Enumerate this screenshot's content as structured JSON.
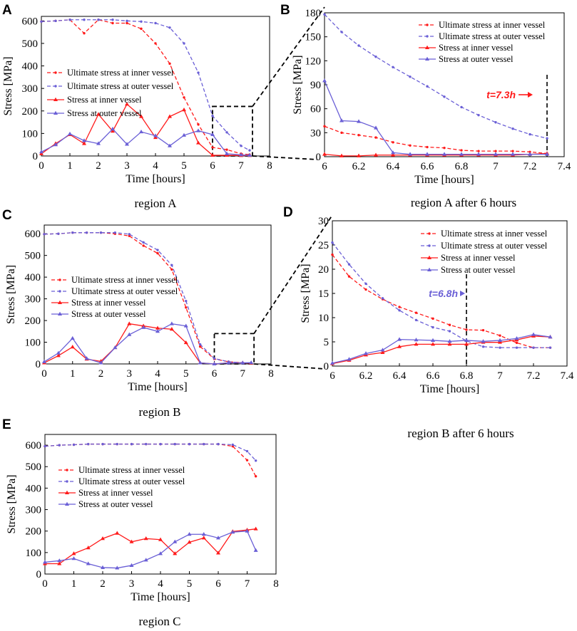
{
  "chart_data": [
    {
      "id": "A",
      "type": "line",
      "panel_label": "A",
      "caption": "region A",
      "xlabel": "Time [hours]",
      "ylabel": "Stress [MPa]",
      "xlim": [
        0,
        8
      ],
      "ylim": [
        0,
        620
      ],
      "xticks": [
        0,
        1,
        2,
        3,
        4,
        5,
        6,
        7,
        8
      ],
      "yticks": [
        0,
        100,
        200,
        300,
        400,
        500,
        600
      ],
      "legend_position": "middle-left",
      "series": [
        {
          "name": "Ultimate stress at inner vessel",
          "color": "#ff1a1a",
          "dashed": true,
          "marker": "dot",
          "x": [
            0,
            0.5,
            1,
            1.5,
            2,
            2.5,
            3,
            3.5,
            4,
            4.5,
            5,
            5.5,
            6,
            6.5,
            7,
            7.3
          ],
          "y": [
            597,
            600,
            605,
            545,
            605,
            590,
            590,
            565,
            500,
            410,
            260,
            140,
            38,
            28,
            10,
            6
          ]
        },
        {
          "name": "Ultimate stress at outer vessel",
          "color": "#6a5fd6",
          "dashed": true,
          "marker": "dot",
          "x": [
            0,
            0.5,
            1,
            1.5,
            2,
            2.5,
            3,
            3.5,
            4,
            4.5,
            5,
            5.5,
            6,
            6.5,
            7,
            7.3
          ],
          "y": [
            597,
            600,
            605,
            605,
            605,
            605,
            600,
            597,
            590,
            570,
            500,
            370,
            178,
            105,
            45,
            25
          ]
        },
        {
          "name": "Stress at inner vessel",
          "color": "#ff1a1a",
          "dashed": false,
          "marker": "triangle",
          "x": [
            0,
            0.5,
            1,
            1.5,
            2,
            2.5,
            3,
            3.5,
            4,
            4.5,
            5,
            5.5,
            6,
            6.5,
            7,
            7.3
          ],
          "y": [
            10,
            55,
            95,
            55,
            185,
            110,
            230,
            175,
            82,
            175,
            205,
            58,
            3,
            3,
            2,
            2
          ]
        },
        {
          "name": "Stress at outer vessel",
          "color": "#6a5fd6",
          "dashed": false,
          "marker": "triangle",
          "x": [
            0,
            0.5,
            1,
            1.5,
            2,
            2.5,
            3,
            3.5,
            4,
            4.5,
            5,
            5.5,
            6,
            6.5,
            7,
            7.3
          ],
          "y": [
            18,
            50,
            98,
            68,
            55,
            120,
            52,
            107,
            90,
            45,
            92,
            112,
            95,
            10,
            5,
            3
          ]
        }
      ]
    },
    {
      "id": "B",
      "type": "line",
      "panel_label": "B",
      "caption": "region A after 6 hours",
      "xlabel": "Time [hours]",
      "ylabel": "Stress [MPa]",
      "xlim": [
        6,
        7.4
      ],
      "ylim": [
        0,
        180
      ],
      "xticks": [
        6,
        6.2,
        6.4,
        6.6,
        6.8,
        7,
        7.2,
        7.4
      ],
      "yticks": [
        0,
        30,
        60,
        90,
        120,
        150,
        180
      ],
      "legend_position": "top-right",
      "annotation": {
        "text": "t=7.3h",
        "x": 7.3,
        "color": "#ff1a1a"
      },
      "series": [
        {
          "name": "Ultimate stress at inner vessel",
          "color": "#ff1a1a",
          "dashed": true,
          "marker": "dot",
          "x": [
            6,
            6.1,
            6.2,
            6.3,
            6.4,
            6.5,
            6.6,
            6.7,
            6.8,
            6.9,
            7,
            7.1,
            7.2,
            7.3
          ],
          "y": [
            38,
            30,
            27,
            24,
            18,
            14,
            12,
            11,
            8,
            7,
            7,
            7,
            6,
            4
          ]
        },
        {
          "name": "Ultimate stress at outer vessel",
          "color": "#6a5fd6",
          "dashed": true,
          "marker": "dot",
          "x": [
            6,
            6.1,
            6.2,
            6.3,
            6.4,
            6.5,
            6.6,
            6.7,
            6.8,
            6.9,
            7,
            7.1,
            7.2,
            7.3
          ],
          "y": [
            178,
            156,
            139,
            125,
            112,
            100,
            88,
            75,
            62,
            52,
            43,
            35,
            28,
            23
          ]
        },
        {
          "name": "Stress at inner vessel",
          "color": "#ff1a1a",
          "dashed": false,
          "marker": "triangle",
          "x": [
            6,
            6.1,
            6.2,
            6.3,
            6.4,
            6.5,
            6.6,
            6.7,
            6.8,
            6.9,
            7,
            7.1,
            7.2,
            7.3
          ],
          "y": [
            3,
            1,
            1,
            2,
            2,
            2,
            2,
            2,
            2,
            2,
            2,
            2,
            3,
            4
          ]
        },
        {
          "name": "Stress at outer vessel",
          "color": "#6a5fd6",
          "dashed": false,
          "marker": "triangle",
          "x": [
            6,
            6.1,
            6.2,
            6.3,
            6.4,
            6.5,
            6.6,
            6.7,
            6.8,
            6.9,
            7,
            7.1,
            7.2,
            7.3
          ],
          "y": [
            95,
            45,
            44,
            36,
            5,
            3,
            3,
            3,
            3,
            3,
            3,
            3,
            3,
            3
          ]
        }
      ]
    },
    {
      "id": "C",
      "type": "line",
      "panel_label": "C",
      "caption": "region B",
      "xlabel": "Time [hours]",
      "ylabel": "Stress [MPa]",
      "xlim": [
        0,
        8
      ],
      "ylim": [
        0,
        640
      ],
      "xticks": [
        0,
        1,
        2,
        3,
        4,
        5,
        6,
        7,
        8
      ],
      "yticks": [
        0,
        100,
        200,
        300,
        400,
        500,
        600
      ],
      "legend_position": "middle-left",
      "series": [
        {
          "name": "Ultimate stress at inner vessel",
          "color": "#ff1a1a",
          "dashed": true,
          "marker": "dot",
          "x": [
            0,
            0.5,
            1,
            1.5,
            2,
            2.5,
            3,
            3.5,
            4,
            4.5,
            5,
            5.5,
            6,
            6.5,
            7,
            7.3
          ],
          "y": [
            598,
            600,
            605,
            605,
            605,
            600,
            590,
            545,
            510,
            435,
            260,
            80,
            23,
            10,
            5,
            4
          ]
        },
        {
          "name": "Ultimate stress at outer vessel",
          "color": "#6a5fd6",
          "dashed": true,
          "marker": "dot",
          "x": [
            0,
            0.5,
            1,
            1.5,
            2,
            2.5,
            3,
            3.5,
            4,
            4.5,
            5,
            5.5,
            6,
            6.5,
            7,
            7.3
          ],
          "y": [
            598,
            600,
            605,
            605,
            605,
            605,
            598,
            560,
            525,
            455,
            290,
            90,
            25,
            10,
            5,
            4
          ]
        },
        {
          "name": "Stress at inner vessel",
          "color": "#ff1a1a",
          "dashed": false,
          "marker": "triangle",
          "x": [
            0,
            0.5,
            1,
            1.5,
            2,
            2.5,
            3,
            3.5,
            4,
            4.5,
            5,
            5.5,
            6,
            6.5,
            7,
            7.3
          ],
          "y": [
            5,
            38,
            78,
            22,
            12,
            75,
            185,
            175,
            165,
            160,
            98,
            5,
            0,
            5,
            5,
            4
          ]
        },
        {
          "name": "Stress at outer vessel",
          "color": "#6a5fd6",
          "dashed": false,
          "marker": "triangle",
          "x": [
            0,
            0.5,
            1,
            1.5,
            2,
            2.5,
            3,
            3.5,
            4,
            4.5,
            5,
            5.5,
            6,
            6.5,
            7,
            7.3
          ],
          "y": [
            10,
            50,
            118,
            25,
            5,
            75,
            135,
            168,
            150,
            185,
            175,
            5,
            0,
            5,
            5,
            6
          ]
        }
      ]
    },
    {
      "id": "D",
      "type": "line",
      "panel_label": "D",
      "caption": "region B after 6 hours",
      "xlabel": "Time [hours]",
      "ylabel": "Stress [MPa]",
      "xlim": [
        6,
        7.4
      ],
      "ylim": [
        0,
        30
      ],
      "xticks": [
        6,
        6.2,
        6.4,
        6.6,
        6.8,
        7,
        7.2,
        7.4
      ],
      "yticks": [
        0,
        5,
        10,
        15,
        20,
        25,
        30
      ],
      "legend_position": "top-right",
      "annotation": {
        "text": "t=6.8h",
        "x": 6.8,
        "color": "#6a5fd6"
      },
      "series": [
        {
          "name": "Ultimate stress at inner vessel",
          "color": "#ff1a1a",
          "dashed": true,
          "marker": "dot",
          "x": [
            6,
            6.1,
            6.2,
            6.3,
            6.4,
            6.5,
            6.6,
            6.7,
            6.8,
            6.9,
            7,
            7.1,
            7.2,
            7.3
          ],
          "y": [
            23,
            18.5,
            15.8,
            13.8,
            12.2,
            11,
            9.8,
            8.5,
            7.5,
            7.4,
            6.3,
            4.8,
            3.8,
            3.8
          ]
        },
        {
          "name": "Ultimate stress at outer vessel",
          "color": "#6a5fd6",
          "dashed": true,
          "marker": "dot",
          "x": [
            6,
            6.1,
            6.2,
            6.3,
            6.4,
            6.5,
            6.6,
            6.7,
            6.8,
            6.9,
            7,
            7.1,
            7.2,
            7.3
          ],
          "y": [
            25.5,
            21,
            17,
            14,
            11.5,
            9.5,
            8,
            7.2,
            5.2,
            4,
            3.8,
            3.8,
            3.8,
            3.8
          ]
        },
        {
          "name": "Stress at inner vessel",
          "color": "#ff1a1a",
          "dashed": false,
          "marker": "triangle",
          "x": [
            6,
            6.1,
            6.2,
            6.3,
            6.4,
            6.5,
            6.6,
            6.7,
            6.8,
            6.9,
            7,
            7.1,
            7.2,
            7.3
          ],
          "y": [
            0.5,
            1.2,
            2.3,
            2.8,
            4,
            4.5,
            4.5,
            4.5,
            4.5,
            4.9,
            4.9,
            5.4,
            6.2,
            6
          ]
        },
        {
          "name": "Stress at outer vessel",
          "color": "#6a5fd6",
          "dashed": false,
          "marker": "triangle",
          "x": [
            6,
            6.1,
            6.2,
            6.3,
            6.4,
            6.5,
            6.6,
            6.7,
            6.8,
            6.9,
            7,
            7.1,
            7.2,
            7.3
          ],
          "y": [
            0.6,
            1.4,
            2.6,
            3.3,
            5.5,
            5.4,
            5.3,
            5.1,
            5.3,
            5.1,
            5.3,
            5.7,
            6.5,
            6
          ]
        }
      ]
    },
    {
      "id": "E",
      "type": "line",
      "panel_label": "E",
      "caption": "region C",
      "xlabel": "Time [hours]",
      "ylabel": "Stress [MPa]",
      "xlim": [
        0,
        8
      ],
      "ylim": [
        0,
        650
      ],
      "xticks": [
        0,
        1,
        2,
        3,
        4,
        5,
        6,
        7,
        8
      ],
      "yticks": [
        0,
        100,
        200,
        300,
        400,
        500,
        600
      ],
      "legend_position": "middle-left",
      "series": [
        {
          "name": "Ultimate stress at inner vessel",
          "color": "#ff1a1a",
          "dashed": true,
          "marker": "dot",
          "x": [
            0,
            0.5,
            1,
            1.5,
            2,
            2.5,
            3,
            3.5,
            4,
            4.5,
            5,
            5.5,
            6,
            6.5,
            7,
            7.3
          ],
          "y": [
            595,
            600,
            602,
            605,
            605,
            605,
            605,
            605,
            605,
            605,
            605,
            605,
            605,
            595,
            530,
            455
          ]
        },
        {
          "name": "Ultimate stress at outer vessel",
          "color": "#6a5fd6",
          "dashed": true,
          "marker": "dot",
          "x": [
            0,
            0.5,
            1,
            1.5,
            2,
            2.5,
            3,
            3.5,
            4,
            4.5,
            5,
            5.5,
            6,
            6.5,
            7,
            7.3
          ],
          "y": [
            595,
            600,
            602,
            605,
            605,
            605,
            605,
            605,
            605,
            605,
            605,
            605,
            605,
            602,
            572,
            528
          ]
        },
        {
          "name": "Stress at inner vessel",
          "color": "#ff1a1a",
          "dashed": false,
          "marker": "triangle",
          "x": [
            0,
            0.5,
            1,
            1.5,
            2,
            2.5,
            3,
            3.5,
            4,
            4.5,
            5,
            5.5,
            6,
            6.5,
            7,
            7.3
          ],
          "y": [
            48,
            48,
            95,
            122,
            165,
            190,
            150,
            165,
            160,
            95,
            148,
            168,
            98,
            198,
            205,
            210
          ]
        },
        {
          "name": "Stress at outer vessel",
          "color": "#6a5fd6",
          "dashed": false,
          "marker": "triangle",
          "x": [
            0,
            0.5,
            1,
            1.5,
            2,
            2.5,
            3,
            3.5,
            4,
            4.5,
            5,
            5.5,
            6,
            6.5,
            7,
            7.3
          ],
          "y": [
            55,
            62,
            72,
            48,
            30,
            28,
            40,
            65,
            95,
            150,
            185,
            185,
            168,
            195,
            200,
            110
          ]
        }
      ]
    }
  ]
}
